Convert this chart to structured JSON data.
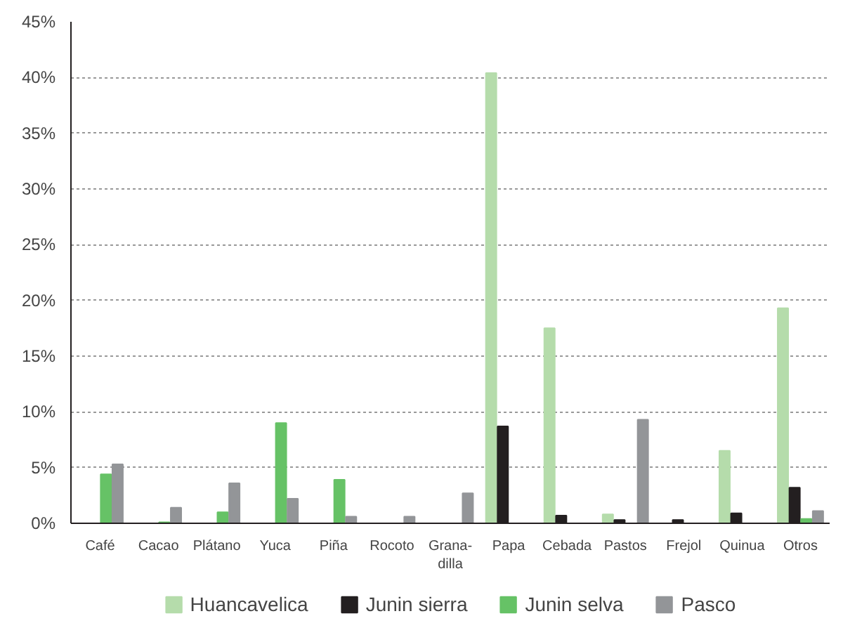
{
  "chart_data": {
    "type": "bar",
    "categories": [
      "Café",
      "Cacao",
      "Plátano",
      "Yuca",
      "Piña",
      "Rocoto",
      "Grana-\ndilla",
      "Papa",
      "Cebada",
      "Pastos",
      "Frejol",
      "Quinua",
      "Otros"
    ],
    "series": [
      {
        "name": "Huancavelica",
        "color": "#b5dcab",
        "values": [
          0,
          0,
          0,
          0,
          0,
          0,
          0,
          40.4,
          17.5,
          0.8,
          0,
          6.5,
          19.3
        ]
      },
      {
        "name": "Junin sierra",
        "color": "#231f20",
        "values": [
          0,
          0,
          0,
          0,
          0,
          0,
          0,
          8.7,
          0.7,
          0.3,
          0.3,
          0.9,
          3.2
        ]
      },
      {
        "name": "Junin selva",
        "color": "#66c266",
        "values": [
          4.4,
          0.1,
          1.0,
          9.0,
          3.9,
          0,
          0,
          0,
          0,
          0,
          0,
          0,
          0.4
        ]
      },
      {
        "name": "Pasco",
        "color": "#939598",
        "values": [
          5.3,
          1.4,
          3.6,
          2.2,
          0.6,
          0.6,
          2.7,
          0,
          0,
          9.3,
          0,
          0,
          1.1
        ]
      }
    ],
    "ylim": [
      0,
      45
    ],
    "yticks": [
      {
        "value": 0,
        "label": "0%"
      },
      {
        "value": 5,
        "label": "5%"
      },
      {
        "value": 10,
        "label": "10%"
      },
      {
        "value": 15,
        "label": "15%"
      },
      {
        "value": 20,
        "label": "20%"
      },
      {
        "value": 25,
        "label": "25%"
      },
      {
        "value": 30,
        "label": "30%"
      },
      {
        "value": 35,
        "label": "35%"
      },
      {
        "value": 40,
        "label": "40%"
      },
      {
        "value": 45,
        "label": "45%"
      }
    ],
    "grid": "y",
    "legend": "bottom"
  }
}
